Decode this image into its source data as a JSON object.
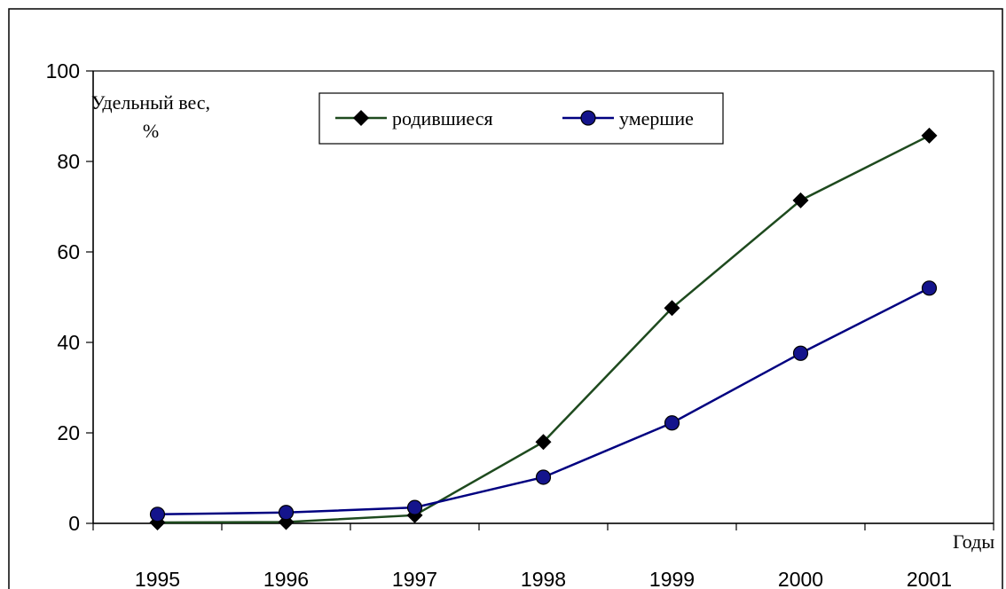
{
  "chart_data": {
    "type": "line",
    "ylabel": "Удельный вес, %",
    "xlabel": "Годы",
    "categories": [
      "1995",
      "1996",
      "1997",
      "1998",
      "1999",
      "2000",
      "2001"
    ],
    "series": [
      {
        "name": "родившиеся",
        "color": "#1e4a1e",
        "marker": "diamond",
        "marker_color": "#000000",
        "values": [
          0.2,
          0.3,
          1.8,
          18,
          47.6,
          71.4,
          85.7
        ]
      },
      {
        "name": "умершие",
        "color": "#000080",
        "marker": "circle",
        "marker_color": "#14148c",
        "values": [
          2,
          2.4,
          3.5,
          10.2,
          22.2,
          37.6,
          52
        ]
      }
    ],
    "ylim": [
      0,
      100
    ],
    "yticks": [
      0,
      20,
      40,
      60,
      80,
      100
    ],
    "grid": false
  }
}
